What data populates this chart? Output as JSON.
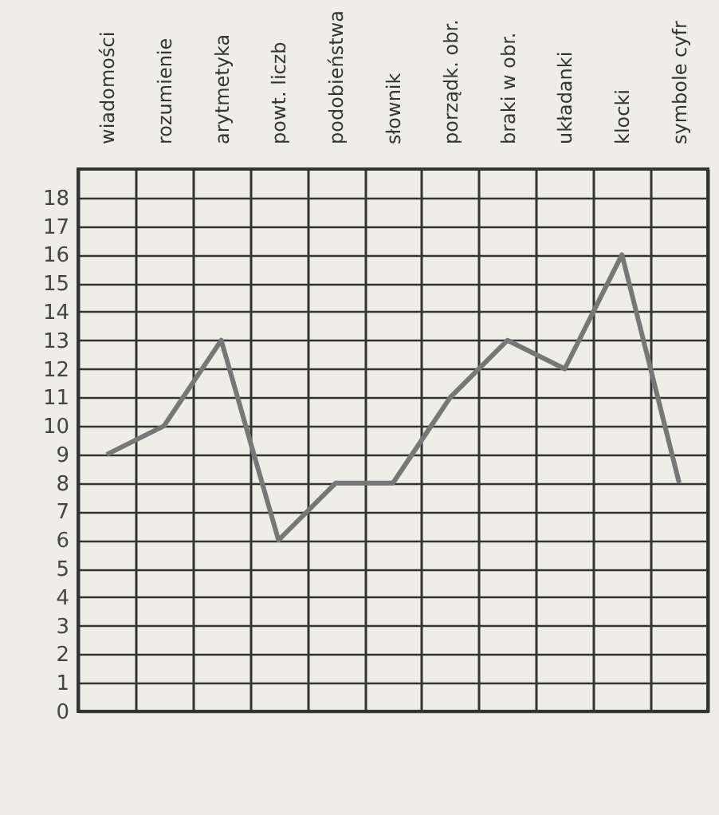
{
  "chart_data": {
    "type": "line",
    "categories": [
      "wiadomości",
      "rozumienie",
      "arytmetyka",
      "powt. liczb",
      "podobieństwa",
      "słownik",
      "porządk. obr.",
      "braki w obr.",
      "układanki",
      "klocki",
      "symbole cyfr"
    ],
    "series": [
      {
        "color": "#777777",
        "values": [
          9,
          10,
          13,
          6,
          8,
          8,
          11,
          13,
          12,
          16,
          8
        ]
      }
    ],
    "ylim": [
      0,
      19
    ],
    "yticks": [
      0,
      1,
      2,
      3,
      4,
      5,
      6,
      7,
      8,
      9,
      10,
      11,
      12,
      13,
      14,
      15,
      16,
      17,
      18
    ],
    "grid": true
  }
}
